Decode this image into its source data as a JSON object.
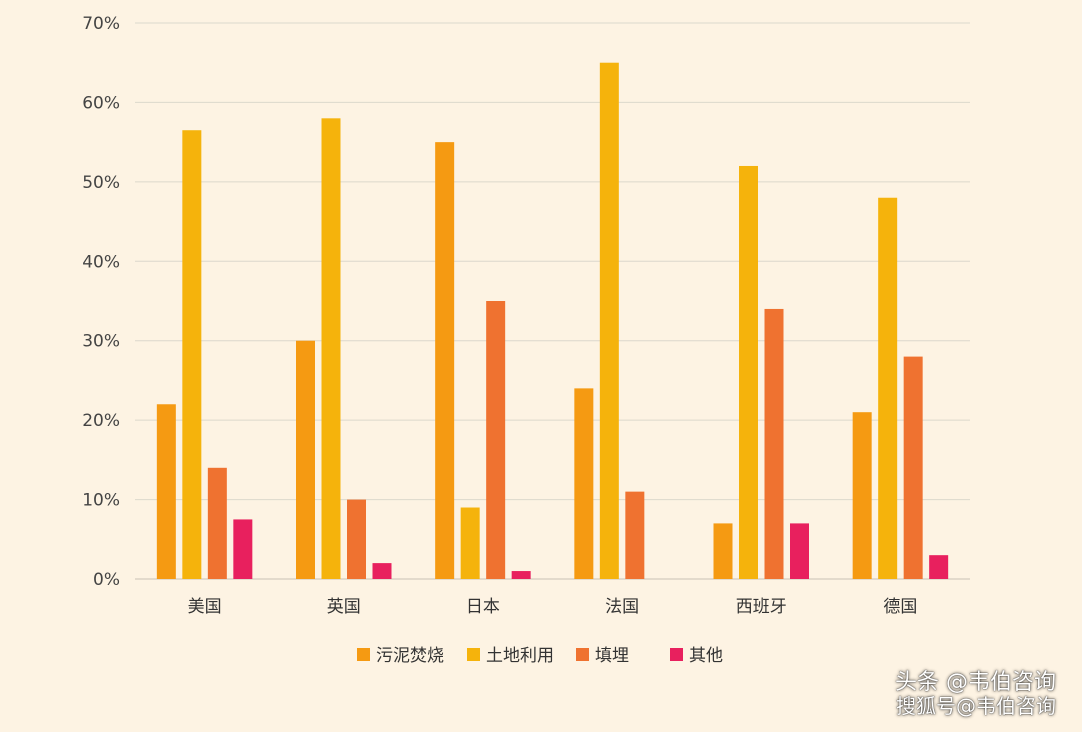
{
  "chart_data": {
    "type": "bar",
    "title": "",
    "xlabel": "",
    "ylabel": "",
    "ylim": [
      0,
      70
    ],
    "yticks": [
      "0%",
      "10%",
      "20%",
      "30%",
      "40%",
      "50%",
      "60%",
      "70%"
    ],
    "grid": true,
    "legend": "bottom",
    "categories": [
      "美国",
      "英国",
      "日本",
      "法国",
      "西班牙",
      "德国"
    ],
    "series": [
      {
        "name": "污泥焚烧",
        "color": "#f59a12",
        "values": [
          22,
          30,
          55,
          24,
          7,
          21
        ]
      },
      {
        "name": "土地利用",
        "color": "#f5b30c",
        "values": [
          56.5,
          58,
          9,
          65,
          52,
          48
        ]
      },
      {
        "name": "填埋",
        "color": "#ef7230",
        "values": [
          14,
          10,
          35,
          11,
          34,
          28
        ]
      },
      {
        "name": "其他",
        "color": "#e8205e",
        "values": [
          7.5,
          2,
          1,
          0,
          7,
          3
        ]
      }
    ]
  },
  "watermark": {
    "line1": "头条 @韦伯咨询",
    "line2": "搜狐号@韦伯咨询"
  }
}
